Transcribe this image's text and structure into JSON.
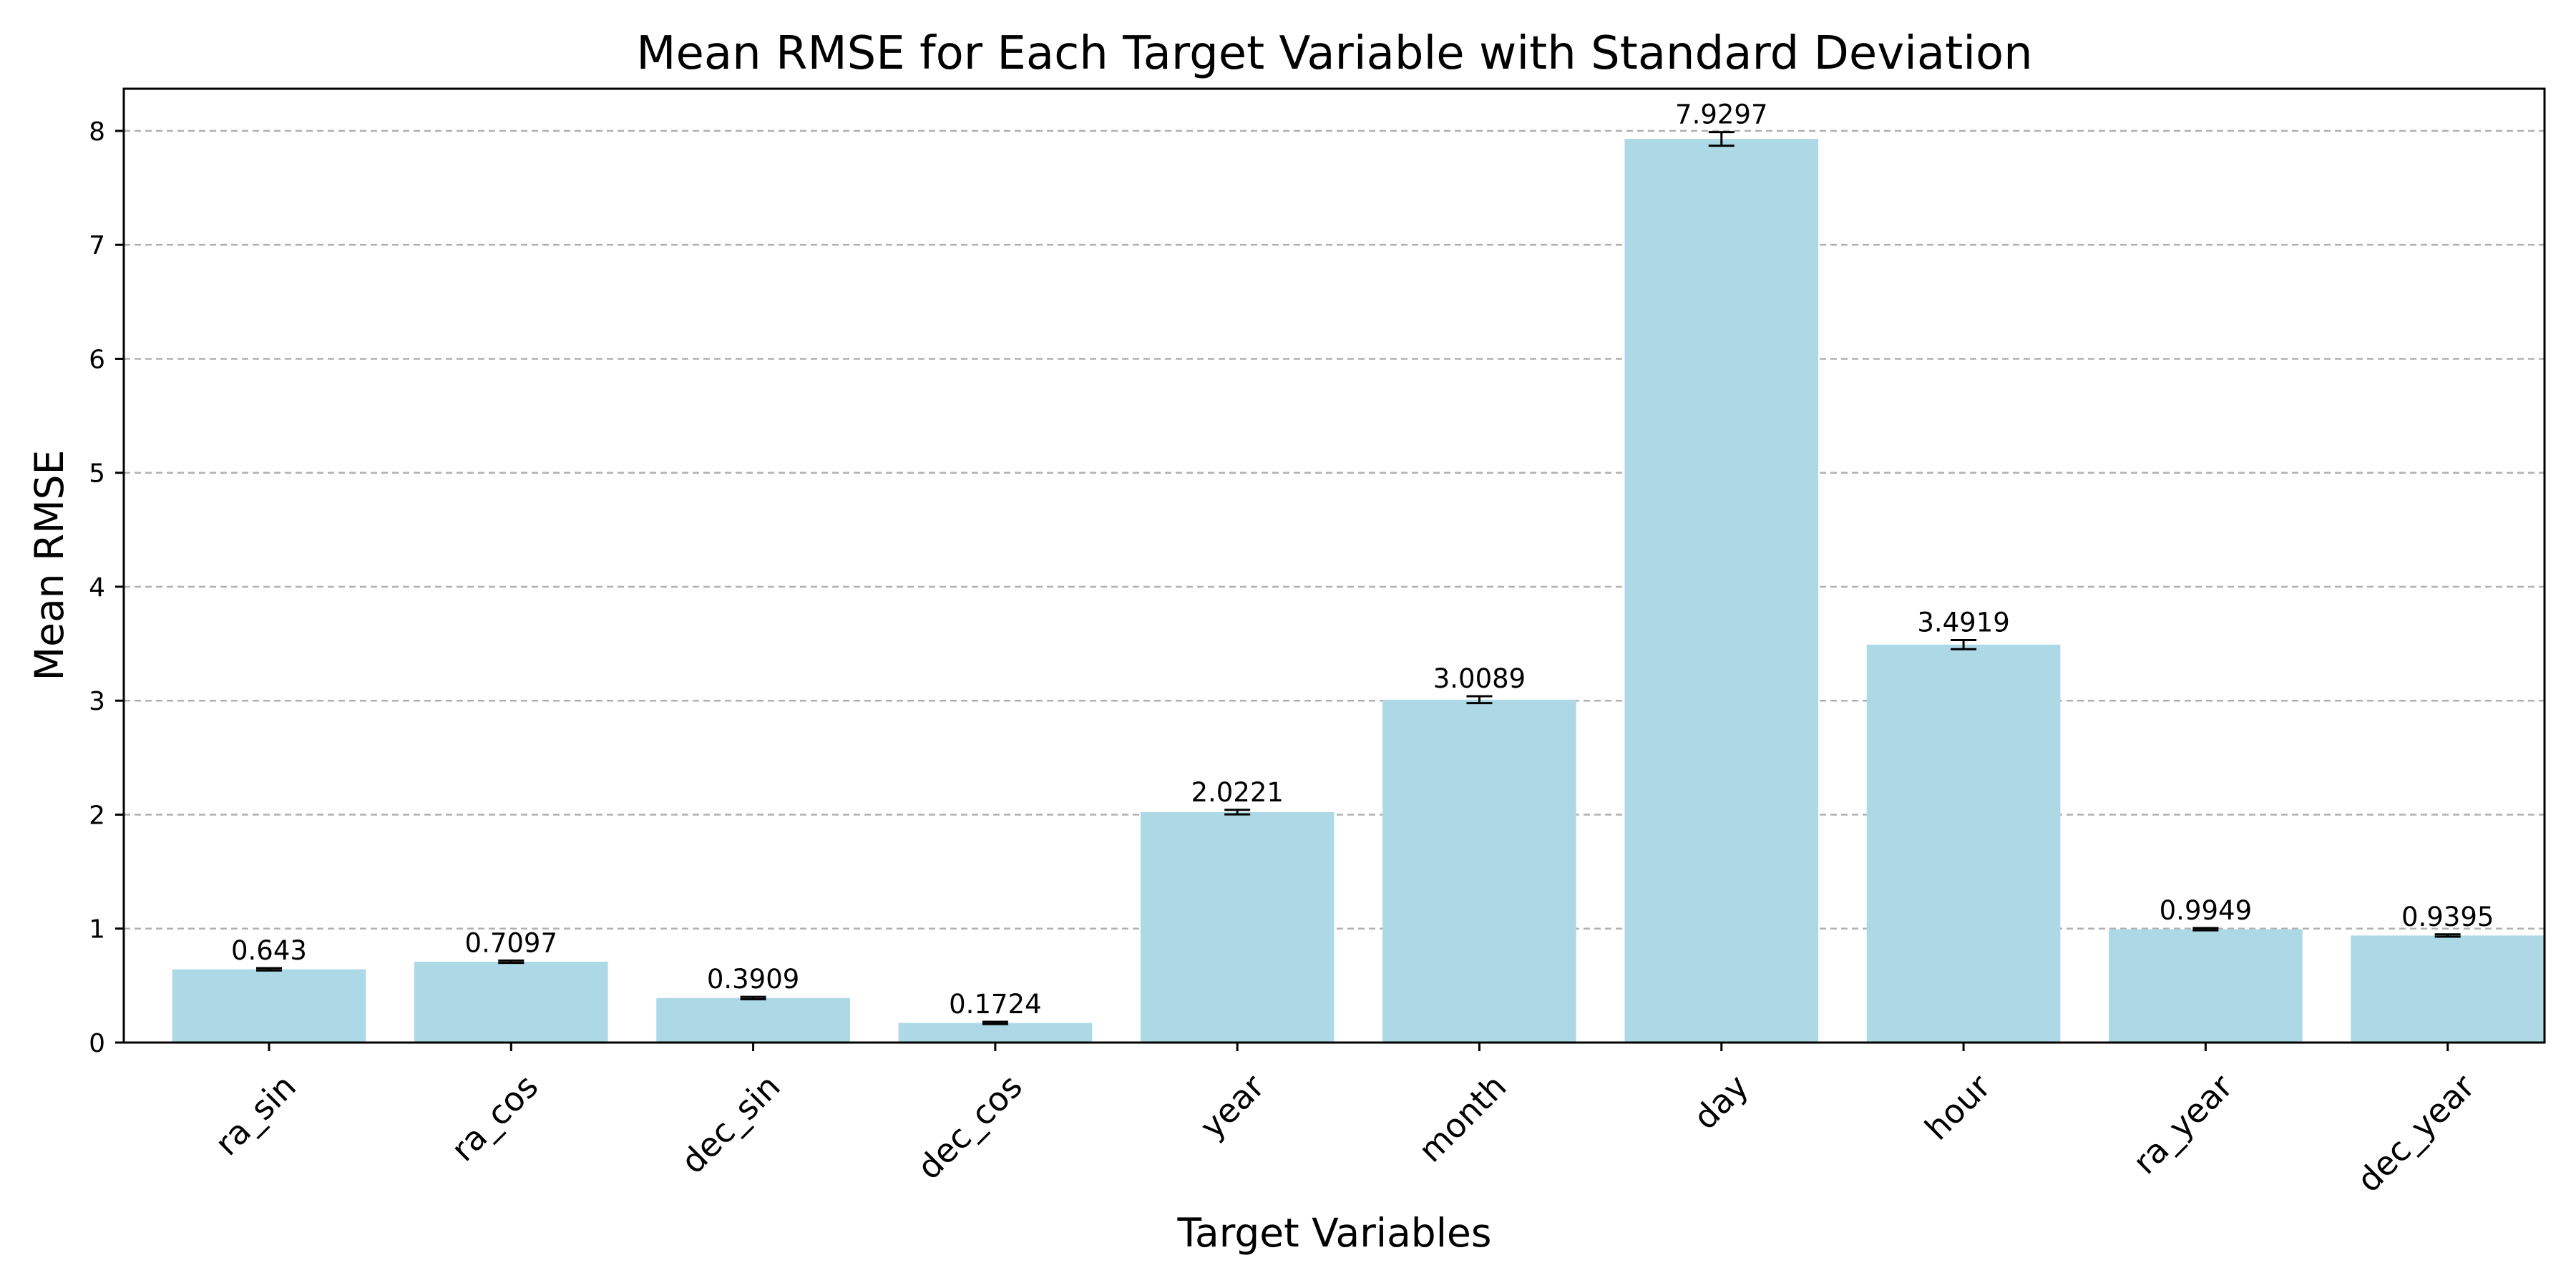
{
  "chart_data": {
    "type": "bar",
    "title": "Mean RMSE for Each Target Variable with Standard Deviation",
    "xlabel": "Target Variables",
    "ylabel": "Mean RMSE",
    "categories": [
      "ra_sin",
      "ra_cos",
      "dec_sin",
      "dec_cos",
      "year",
      "month",
      "day",
      "hour",
      "ra_year",
      "dec_year"
    ],
    "values": [
      0.643,
      0.7097,
      0.3909,
      0.1724,
      2.0221,
      3.0089,
      7.9297,
      3.4919,
      0.9949,
      0.9395
    ],
    "value_labels": [
      "0.643",
      "0.7097",
      "0.3909",
      "0.1724",
      "2.0221",
      "3.0089",
      "7.9297",
      "3.4919",
      "0.9949",
      "0.9395"
    ],
    "errors": [
      0.01,
      0.01,
      0.01,
      0.01,
      0.02,
      0.03,
      0.06,
      0.04,
      0.01,
      0.01
    ],
    "ylim": [
      0,
      8.37
    ],
    "yticks": [
      0,
      1,
      2,
      3,
      4,
      5,
      6,
      7,
      8
    ],
    "grid": "y-dashed",
    "colors": {
      "bar": "#add8e6",
      "grid": "#b0b0b0",
      "axis": "#000000"
    }
  }
}
